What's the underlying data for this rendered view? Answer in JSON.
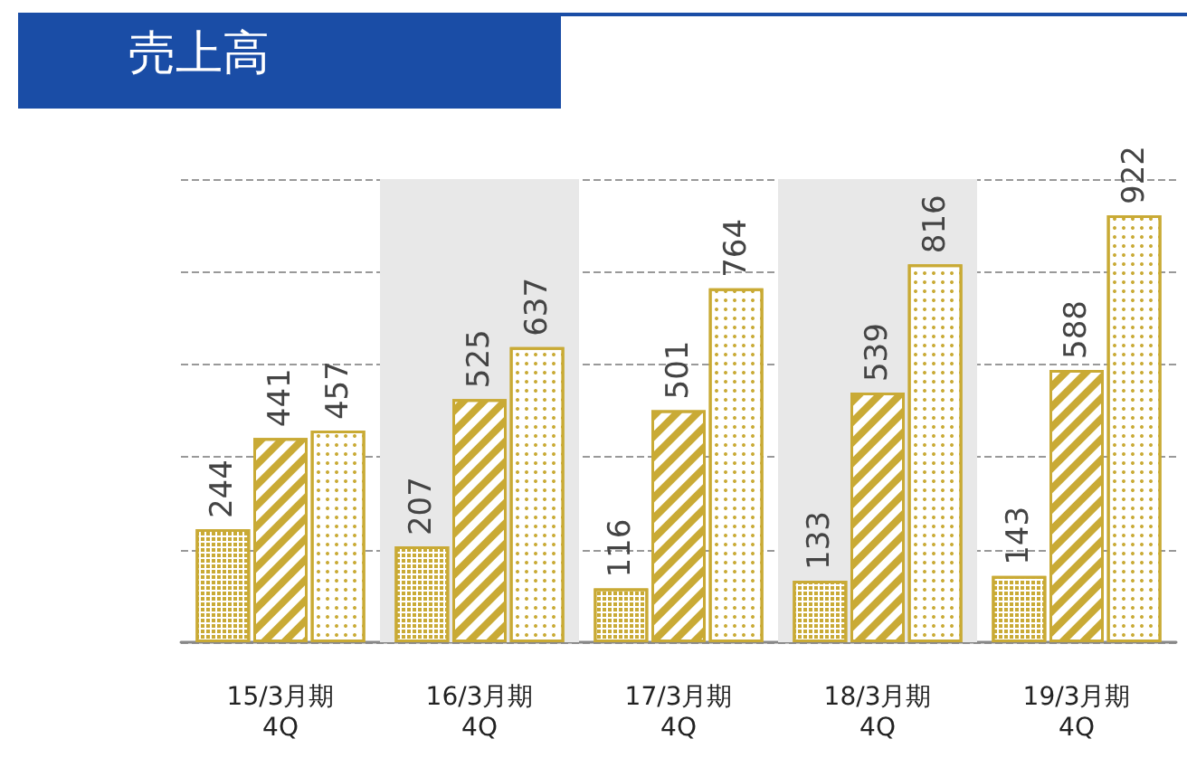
{
  "chart_data": {
    "type": "bar",
    "title": "売上高",
    "categories": [
      "15/3月期\n4Q",
      "16/3月期\n4Q",
      "17/3月期\n4Q",
      "18/3月期\n4Q",
      "19/3月期\n4Q"
    ],
    "series": [
      {
        "color": "#c9aa35",
        "values": [
          244,
          207,
          116,
          133,
          143
        ]
      },
      {
        "color": "#c9aa35",
        "values": [
          441,
          525,
          501,
          539,
          588
        ]
      },
      {
        "color": "#c9aa35",
        "values": [
          457,
          637,
          764,
          816,
          922
        ]
      }
    ],
    "tick_labels": "x",
    "grid": "y",
    "data_labels": true,
    "bands": [
      {
        "axis": "x",
        "from": "16/3月期\n4Q",
        "to": "16/3月期\n4Q",
        "color": "#e8e8e8"
      },
      {
        "axis": "x",
        "from": "18/3月期\n4Q",
        "to": "18/3月期\n4Q",
        "color": "#e8e8e8"
      }
    ]
  }
}
